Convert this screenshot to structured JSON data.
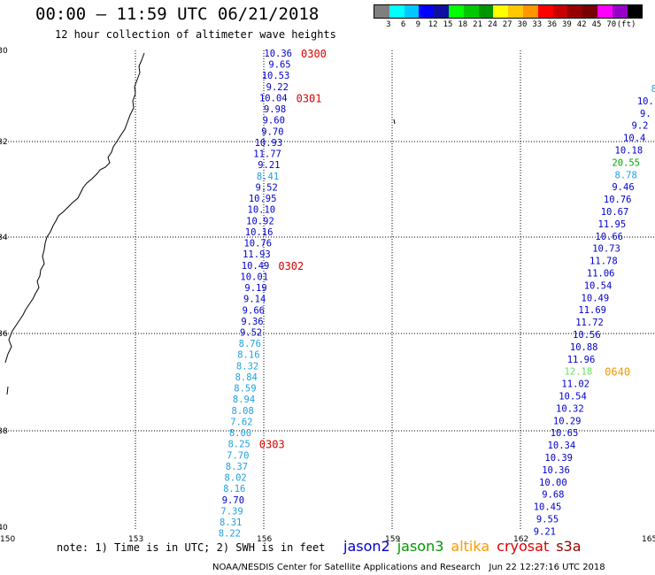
{
  "header": {
    "title": "00:00 – 11:59 UTC 06/21/2018",
    "subtitle": "12 hour collection of altimeter wave heights"
  },
  "colorbar": {
    "colors": [
      "#7f7f7f",
      "#00ffff",
      "#00c8ff",
      "#0000ff",
      "#1010a0",
      "#00ff00",
      "#00c800",
      "#009600",
      "#ffff00",
      "#ffc800",
      "#ff9600",
      "#ff0000",
      "#c80000",
      "#960000",
      "#780000",
      "#ff00ff",
      "#9600c8",
      "#000000"
    ],
    "labels": [
      "3",
      "6",
      "9",
      "12",
      "15",
      "18",
      "21",
      "24",
      "27",
      "30",
      "33",
      "36",
      "39",
      "42",
      "45",
      "70",
      "(ft)"
    ]
  },
  "map": {
    "lat_labels": [
      "-30",
      "-32",
      "-34",
      "-36",
      "-38",
      "-40"
    ],
    "lon_labels": [
      "150",
      "153",
      "156",
      "159",
      "162",
      "165"
    ]
  },
  "tracks": [
    {
      "values": [
        {
          "v": "10.36",
          "c": "#0000cc"
        },
        {
          "v": "9.65",
          "c": "#0000cc"
        },
        {
          "v": "10.53",
          "c": "#0000cc"
        },
        {
          "v": "9.22",
          "c": "#0000cc"
        },
        {
          "v": "10.04",
          "c": "#0000cc"
        },
        {
          "v": "9.98",
          "c": "#0000cc"
        },
        {
          "v": "9.60",
          "c": "#0000cc"
        },
        {
          "v": "9.70",
          "c": "#0000cc"
        },
        {
          "v": "10.93",
          "c": "#0000cc"
        },
        {
          "v": "11.77",
          "c": "#0000cc"
        },
        {
          "v": "9.21",
          "c": "#0000cc"
        },
        {
          "v": "8.41",
          "c": "#1ea0e0"
        },
        {
          "v": "9.52",
          "c": "#0000cc"
        },
        {
          "v": "10.95",
          "c": "#0000cc"
        },
        {
          "v": "10.10",
          "c": "#0000cc"
        },
        {
          "v": "10.92",
          "c": "#0000cc"
        },
        {
          "v": "10.16",
          "c": "#0000cc"
        },
        {
          "v": "10.76",
          "c": "#0000cc"
        },
        {
          "v": "11.93",
          "c": "#0000cc"
        },
        {
          "v": "10.49",
          "c": "#0000cc"
        },
        {
          "v": "10.01",
          "c": "#0000cc"
        },
        {
          "v": "9.19",
          "c": "#0000cc"
        },
        {
          "v": "9.14",
          "c": "#0000cc"
        },
        {
          "v": "9.66",
          "c": "#0000cc"
        },
        {
          "v": "9.36",
          "c": "#0000cc"
        },
        {
          "v": "9.52",
          "c": "#0000cc"
        },
        {
          "v": "8.76",
          "c": "#1ea0e0"
        },
        {
          "v": "8.16",
          "c": "#1ea0e0"
        },
        {
          "v": "8.32",
          "c": "#1ea0e0"
        },
        {
          "v": "8.84",
          "c": "#1ea0e0"
        },
        {
          "v": "8.59",
          "c": "#1ea0e0"
        },
        {
          "v": "8.94",
          "c": "#1ea0e0"
        },
        {
          "v": "8.08",
          "c": "#1ea0e0"
        },
        {
          "v": "7.62",
          "c": "#1ea0e0"
        },
        {
          "v": "8.00",
          "c": "#1ea0e0"
        },
        {
          "v": "8.25",
          "c": "#1ea0e0"
        },
        {
          "v": "7.70",
          "c": "#1ea0e0"
        },
        {
          "v": "8.37",
          "c": "#1ea0e0"
        },
        {
          "v": "8.02",
          "c": "#1ea0e0"
        },
        {
          "v": "8.16",
          "c": "#1ea0e0"
        },
        {
          "v": "9.70",
          "c": "#0000cc"
        },
        {
          "v": "7.39",
          "c": "#1ea0e0"
        },
        {
          "v": "8.31",
          "c": "#1ea0e0"
        },
        {
          "v": "8.22",
          "c": "#1ea0e0"
        }
      ],
      "time_tags": [
        {
          "label": "0300",
          "index": 0,
          "c": "#dd0000"
        },
        {
          "label": "0301",
          "index": 4,
          "c": "#dd0000"
        },
        {
          "label": "0302",
          "index": 19,
          "c": "#dd0000"
        },
        {
          "label": "0303",
          "index": 35,
          "c": "#dd0000"
        }
      ]
    },
    {
      "values": [
        {
          "v": "8",
          "c": "#1ea0e0"
        },
        {
          "v": "10.",
          "c": "#0000cc"
        },
        {
          "v": "9.",
          "c": "#0000cc"
        },
        {
          "v": "9.2",
          "c": "#0000cc"
        },
        {
          "v": "10.4",
          "c": "#0000cc"
        },
        {
          "v": "10.18",
          "c": "#0000cc"
        },
        {
          "v": "20.55",
          "c": "#00aa00"
        },
        {
          "v": "8.78",
          "c": "#1ea0e0"
        },
        {
          "v": "9.46",
          "c": "#0000cc"
        },
        {
          "v": "10.76",
          "c": "#0000cc"
        },
        {
          "v": "10.67",
          "c": "#0000cc"
        },
        {
          "v": "11.95",
          "c": "#0000cc"
        },
        {
          "v": "10.66",
          "c": "#0000cc"
        },
        {
          "v": "10.73",
          "c": "#0000cc"
        },
        {
          "v": "11.78",
          "c": "#0000cc"
        },
        {
          "v": "11.06",
          "c": "#0000cc"
        },
        {
          "v": "10.54",
          "c": "#0000cc"
        },
        {
          "v": "10.49",
          "c": "#0000cc"
        },
        {
          "v": "11.69",
          "c": "#0000cc"
        },
        {
          "v": "11.72",
          "c": "#0000cc"
        },
        {
          "v": "10.56",
          "c": "#0000cc"
        },
        {
          "v": "10.88",
          "c": "#0000cc"
        },
        {
          "v": "11.96",
          "c": "#0000cc"
        },
        {
          "v": "12.18",
          "c": "#66dd66"
        },
        {
          "v": "11.02",
          "c": "#0000cc"
        },
        {
          "v": "10.54",
          "c": "#0000cc"
        },
        {
          "v": "10.32",
          "c": "#0000cc"
        },
        {
          "v": "10.29",
          "c": "#0000cc"
        },
        {
          "v": "10.65",
          "c": "#0000cc"
        },
        {
          "v": "10.34",
          "c": "#0000cc"
        },
        {
          "v": "10.39",
          "c": "#0000cc"
        },
        {
          "v": "10.36",
          "c": "#0000cc"
        },
        {
          "v": "10.00",
          "c": "#0000cc"
        },
        {
          "v": "9.68",
          "c": "#0000cc"
        },
        {
          "v": "10.45",
          "c": "#0000cc"
        },
        {
          "v": "9.55",
          "c": "#0000cc"
        },
        {
          "v": "9.21",
          "c": "#0000cc"
        }
      ],
      "time_tags": [
        {
          "label": "0640",
          "index": 23,
          "c": "#ee9900"
        }
      ]
    }
  ],
  "footer": {
    "note": "note: 1) Time is in UTC; 2) SWH is in feet",
    "satellites": [
      {
        "name": "jason2",
        "color": "#0000cc"
      },
      {
        "name": "jason3",
        "color": "#009900"
      },
      {
        "name": "altika",
        "color": "#ff9900"
      },
      {
        "name": "cryosat",
        "color": "#dd0000"
      },
      {
        "name": "s3a",
        "color": "#990000"
      }
    ],
    "credit": "NOAA/NESDIS Center for Satellite Applications and Research   Jun 22 12:27:16 UTC 2018"
  }
}
